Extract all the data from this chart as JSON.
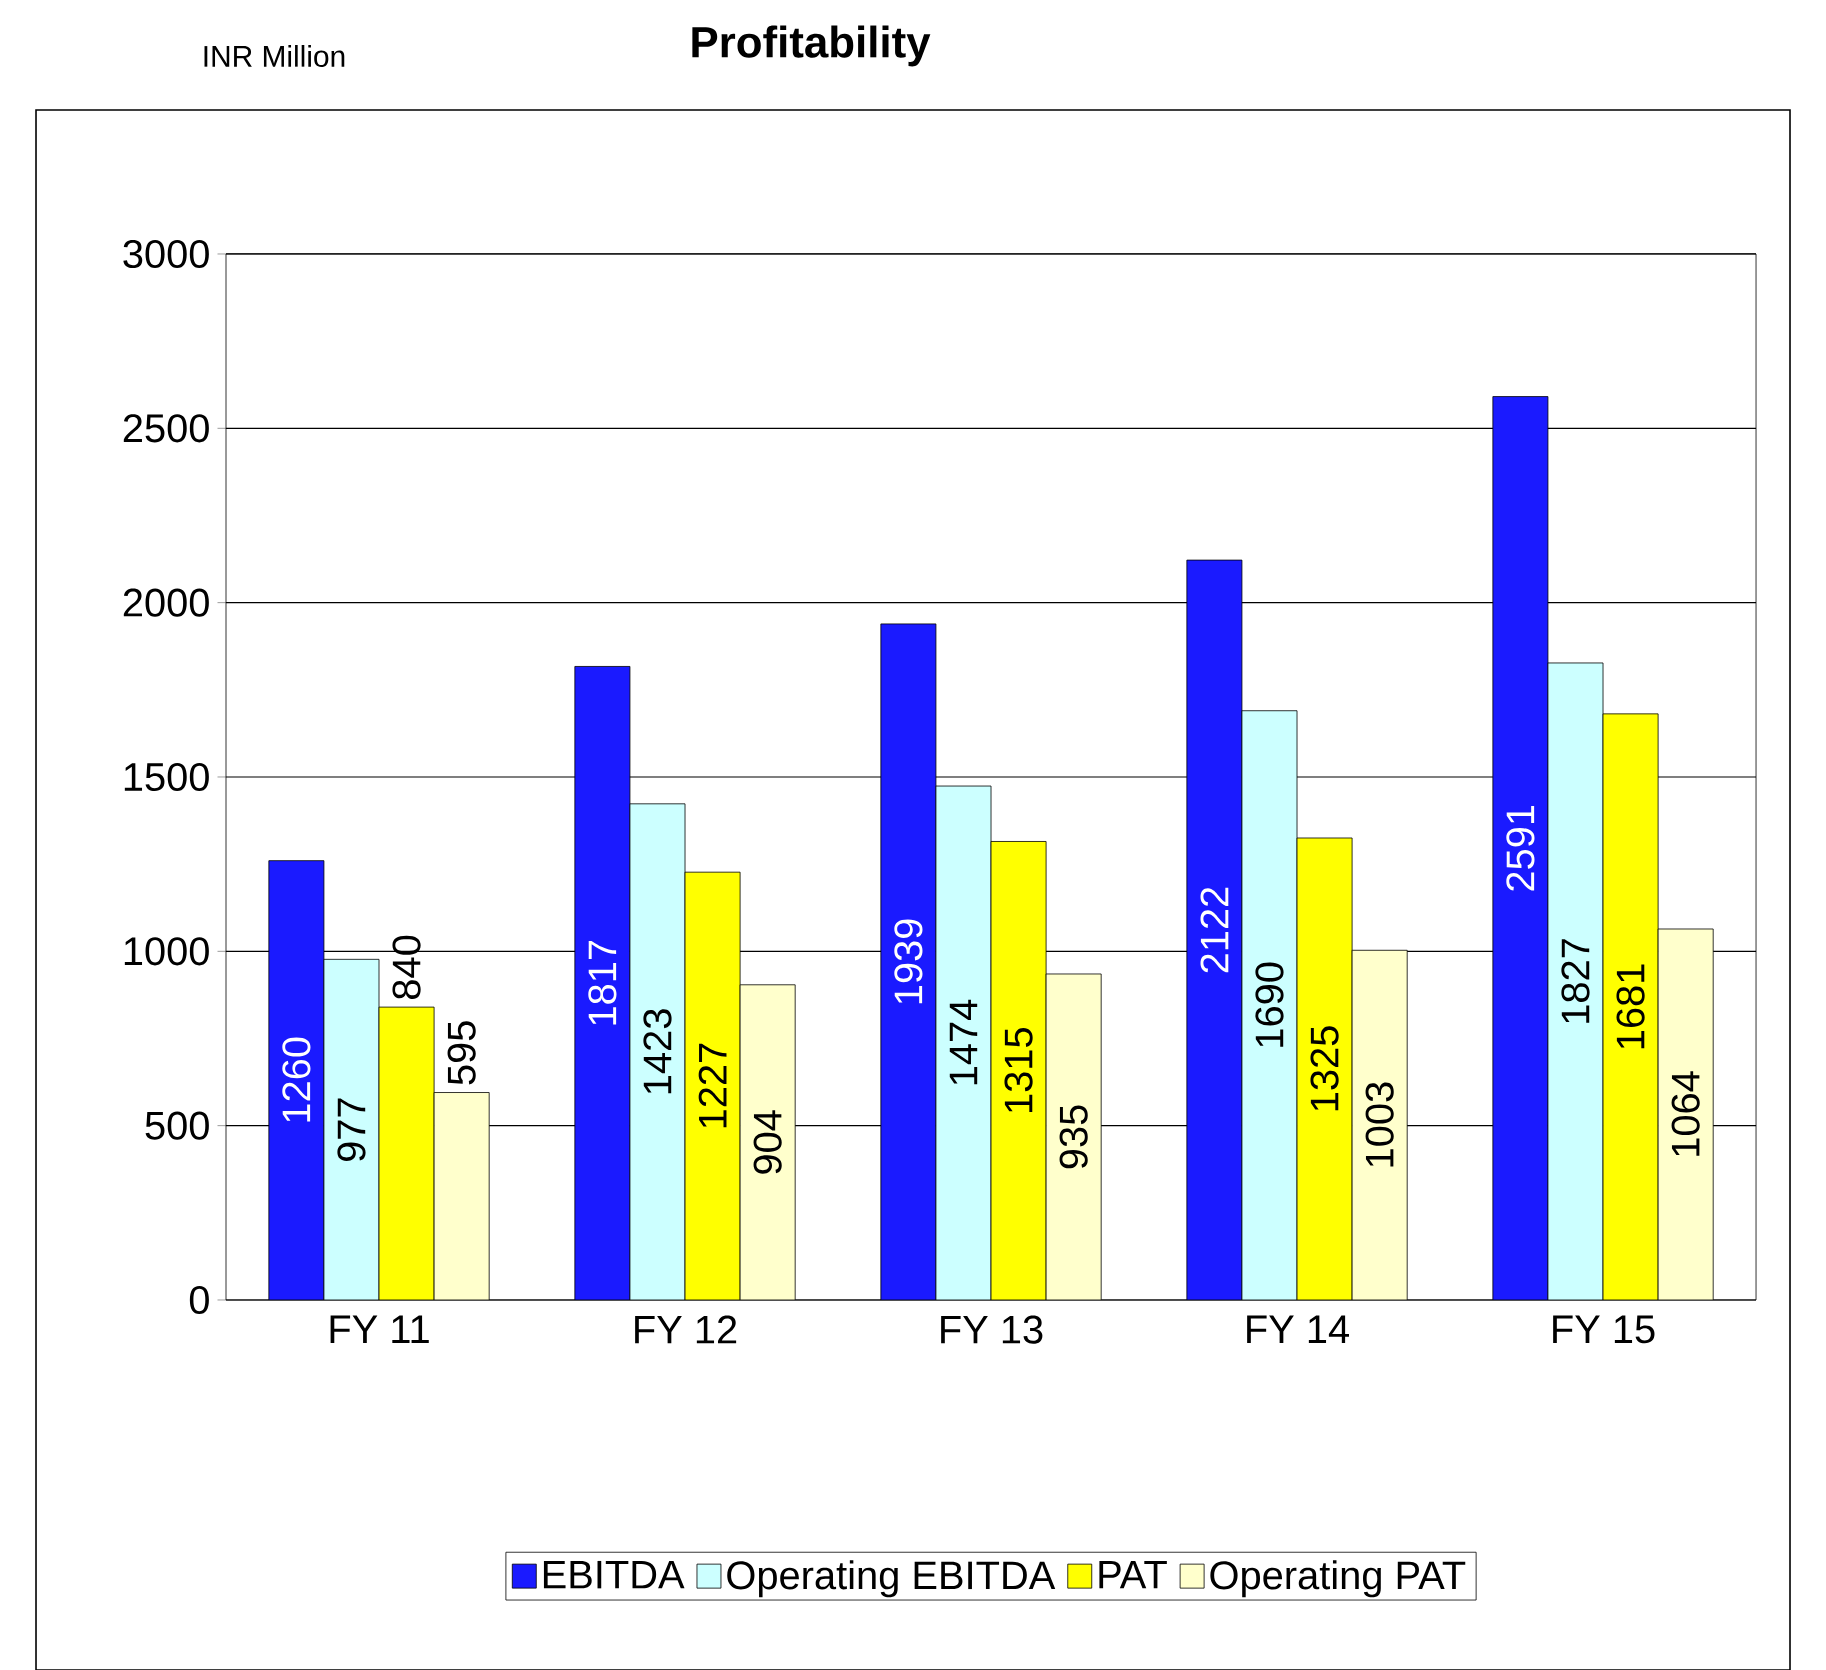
{
  "chart_data": {
    "type": "bar",
    "title": "Profitability",
    "annotations": [
      "INR Million"
    ],
    "categories": [
      "FY 11",
      "FY 12",
      "FY 13",
      "FY 14",
      "FY 15"
    ],
    "series": [
      {
        "name": "EBITDA",
        "color": "#1a1aff",
        "values": [
          1260,
          1817,
          1939,
          2122,
          2591
        ]
      },
      {
        "name": "Operating EBITDA",
        "color": "#ccffff",
        "values": [
          977,
          1423,
          1474,
          1690,
          1827
        ]
      },
      {
        "name": "PAT",
        "color": "#ffff00",
        "values": [
          840,
          1227,
          1315,
          1325,
          1681
        ]
      },
      {
        "name": "Operating PAT",
        "color": "#ffffcc",
        "values": [
          595,
          904,
          935,
          1003,
          1064
        ]
      }
    ],
    "ylim": [
      0,
      3000
    ],
    "yticks": [
      0,
      500,
      1000,
      1500,
      2000,
      2500,
      3000
    ],
    "grid": "y",
    "legend": "bottom",
    "data_labels": true
  }
}
